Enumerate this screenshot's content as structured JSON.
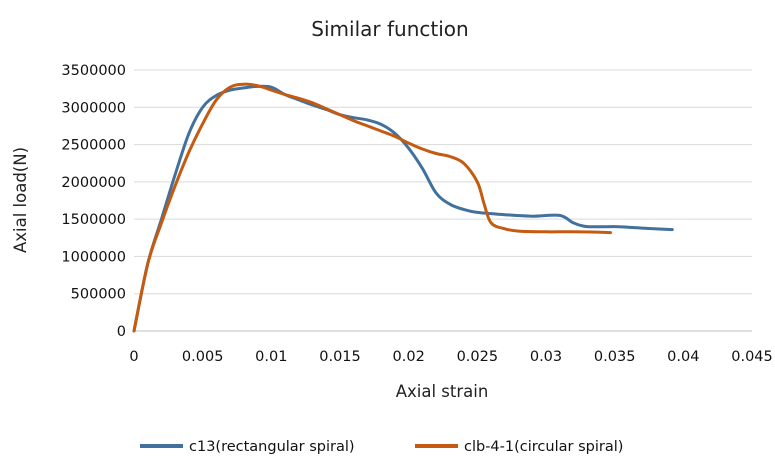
{
  "chart_data": {
    "type": "line",
    "title": "Similar function",
    "xlabel": "Axial strain",
    "ylabel": "Axial load(N)",
    "xlim": [
      0,
      0.045
    ],
    "ylim": [
      0,
      3500000
    ],
    "x_ticks": [
      "0",
      "0.005",
      "0.01",
      "0.015",
      "0.02",
      "0.025",
      "0.03",
      "0.035",
      "0.04",
      "0.045"
    ],
    "y_ticks": [
      "0",
      "500000",
      "1000000",
      "1500000",
      "2000000",
      "2500000",
      "3000000",
      "3500000"
    ],
    "grid": "horizontal",
    "legend_position": "bottom",
    "series": [
      {
        "name": "c13(rectangular spiral)",
        "color": "#41719C",
        "points": [
          [
            0,
            0
          ],
          [
            0.001,
            900000
          ],
          [
            0.002,
            1500000
          ],
          [
            0.003,
            2100000
          ],
          [
            0.004,
            2650000
          ],
          [
            0.005,
            3000000
          ],
          [
            0.006,
            3160000
          ],
          [
            0.007,
            3230000
          ],
          [
            0.008,
            3260000
          ],
          [
            0.009,
            3280000
          ],
          [
            0.01,
            3270000
          ],
          [
            0.011,
            3170000
          ],
          [
            0.012,
            3100000
          ],
          [
            0.013,
            3030000
          ],
          [
            0.014,
            2970000
          ],
          [
            0.015,
            2900000
          ],
          [
            0.016,
            2860000
          ],
          [
            0.017,
            2830000
          ],
          [
            0.018,
            2770000
          ],
          [
            0.019,
            2650000
          ],
          [
            0.02,
            2450000
          ],
          [
            0.021,
            2180000
          ],
          [
            0.022,
            1850000
          ],
          [
            0.023,
            1700000
          ],
          [
            0.024,
            1630000
          ],
          [
            0.025,
            1590000
          ],
          [
            0.027,
            1560000
          ],
          [
            0.029,
            1540000
          ],
          [
            0.031,
            1550000
          ],
          [
            0.032,
            1450000
          ],
          [
            0.033,
            1400000
          ],
          [
            0.035,
            1400000
          ],
          [
            0.037,
            1380000
          ],
          [
            0.0392,
            1360000
          ]
        ]
      },
      {
        "name": "clb-4-1(circular spiral)",
        "color": "#C55A11",
        "points": [
          [
            0,
            0
          ],
          [
            0.001,
            900000
          ],
          [
            0.002,
            1450000
          ],
          [
            0.003,
            1950000
          ],
          [
            0.004,
            2400000
          ],
          [
            0.005,
            2780000
          ],
          [
            0.006,
            3100000
          ],
          [
            0.007,
            3270000
          ],
          [
            0.008,
            3310000
          ],
          [
            0.009,
            3290000
          ],
          [
            0.01,
            3230000
          ],
          [
            0.011,
            3170000
          ],
          [
            0.012,
            3120000
          ],
          [
            0.013,
            3060000
          ],
          [
            0.014,
            2980000
          ],
          [
            0.015,
            2900000
          ],
          [
            0.016,
            2820000
          ],
          [
            0.017,
            2750000
          ],
          [
            0.018,
            2680000
          ],
          [
            0.019,
            2610000
          ],
          [
            0.02,
            2520000
          ],
          [
            0.021,
            2440000
          ],
          [
            0.022,
            2380000
          ],
          [
            0.023,
            2340000
          ],
          [
            0.024,
            2250000
          ],
          [
            0.025,
            2000000
          ],
          [
            0.0255,
            1700000
          ],
          [
            0.026,
            1450000
          ],
          [
            0.027,
            1370000
          ],
          [
            0.028,
            1340000
          ],
          [
            0.03,
            1330000
          ],
          [
            0.032,
            1330000
          ],
          [
            0.0347,
            1320000
          ]
        ]
      }
    ]
  }
}
